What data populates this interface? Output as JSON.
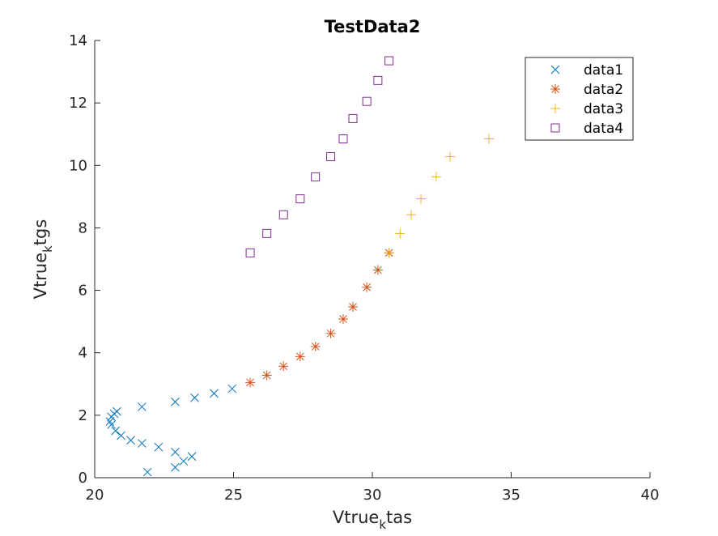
{
  "chart_data": {
    "type": "scatter",
    "title": "TestData2",
    "xlabel_parts": [
      "Vtrue",
      "k",
      "tas"
    ],
    "ylabel_parts": [
      "Vtrue",
      "k",
      "tgs"
    ],
    "xlim": [
      20,
      40
    ],
    "ylim": [
      0,
      14
    ],
    "xticks": [
      20,
      25,
      30,
      35,
      40
    ],
    "yticks": [
      0,
      2,
      4,
      6,
      8,
      10,
      12,
      14
    ],
    "grid": false,
    "legend": "top-right",
    "series": [
      {
        "name": "data1",
        "marker": "x",
        "color": "#0072BD",
        "x": [
          21.9,
          22.9,
          23.2,
          23.5,
          22.9,
          22.3,
          21.7,
          21.3,
          20.95,
          20.75,
          20.6,
          20.55,
          20.6,
          20.7,
          20.8,
          21.7,
          22.9,
          23.6,
          24.3,
          24.95
        ],
        "y": [
          0.18,
          0.33,
          0.53,
          0.68,
          0.82,
          0.98,
          1.1,
          1.2,
          1.35,
          1.5,
          1.7,
          1.8,
          1.95,
          2.05,
          2.12,
          2.27,
          2.43,
          2.56,
          2.7,
          2.85
        ]
      },
      {
        "name": "data2",
        "marker": "asterisk",
        "color": "#D95319",
        "x": [
          25.6,
          26.2,
          26.8,
          27.4,
          27.95,
          28.5,
          28.95,
          29.3,
          29.8,
          30.2,
          30.6
        ],
        "y": [
          3.05,
          3.28,
          3.57,
          3.88,
          4.2,
          4.62,
          5.08,
          5.47,
          6.1,
          6.65,
          7.2
        ]
      },
      {
        "name": "data3",
        "marker": "plus",
        "color": "#EDB120",
        "x": [
          30.6,
          31.0,
          31.4,
          31.75,
          32.3,
          32.8,
          34.2
        ],
        "y": [
          7.2,
          7.82,
          8.42,
          8.93,
          9.63,
          10.28,
          10.85
        ]
      },
      {
        "name": "data4",
        "marker": "square",
        "color": "#7E2F8E",
        "x": [
          25.6,
          26.2,
          26.8,
          27.4,
          27.95,
          28.5,
          28.95,
          29.3,
          29.8,
          30.2,
          30.6
        ],
        "y": [
          7.2,
          7.82,
          8.42,
          8.93,
          9.63,
          10.28,
          10.85,
          11.5,
          12.05,
          12.72,
          13.35
        ]
      }
    ]
  }
}
